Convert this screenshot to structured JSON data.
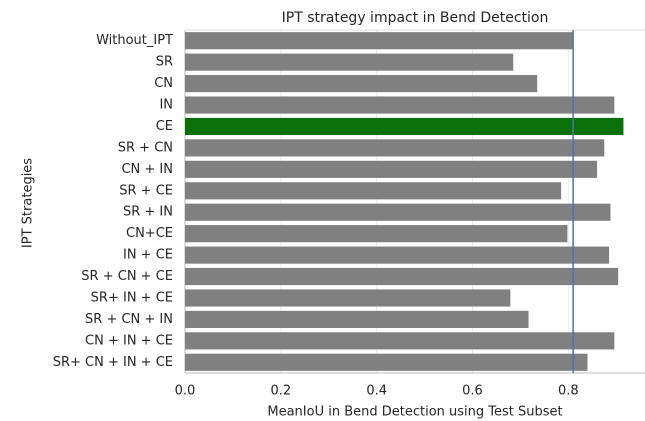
{
  "chart_data": {
    "type": "barh",
    "title": "IPT strategy impact in Bend Detection",
    "x_label": "MeanIoU in Bend Detection using Test Subset",
    "y_label": "IPT Strategies",
    "categories": [
      "Without_IPT",
      "SR",
      "CN",
      "IN",
      "CE",
      "SR + CN",
      "CN + IN",
      "SR + CE",
      "SR + IN",
      "CN+CE",
      "IN + CE",
      "SR + CN + CE",
      "SR+ IN + CE",
      "SR + CN + IN",
      "CN + IN + CE",
      "SR+ CN + IN + CE"
    ],
    "values": [
      0.81,
      0.685,
      0.735,
      0.896,
      0.915,
      0.875,
      0.86,
      0.785,
      0.888,
      0.798,
      0.885,
      0.904,
      0.679,
      0.717,
      0.896,
      0.84
    ],
    "colors": [
      "#808080",
      "#808080",
      "#808080",
      "#808080",
      "#0a700a",
      "#808080",
      "#808080",
      "#808080",
      "#808080",
      "#808080",
      "#808080",
      "#808080",
      "#808080",
      "#808080",
      "#808080",
      "#808080"
    ],
    "reference_line": 0.81,
    "reference_color": "#4c72b0",
    "xlim": [
      0,
      0.96
    ],
    "xticks": [
      {
        "value": 0,
        "label": "0.0"
      },
      0.2,
      0.4,
      0.6,
      0.8
    ],
    "grid": true
  }
}
